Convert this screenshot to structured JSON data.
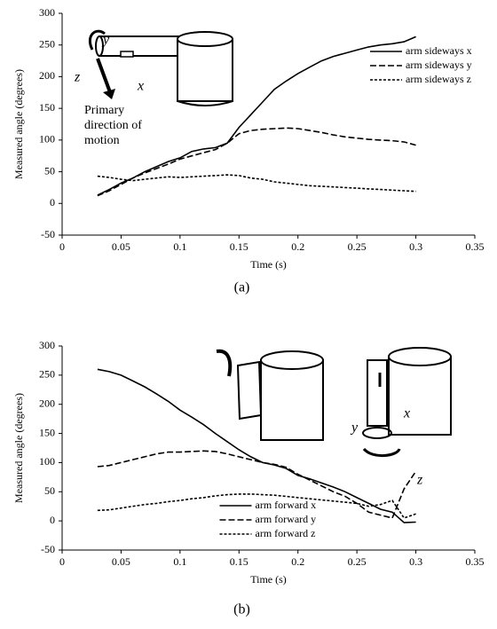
{
  "chart_data": [
    {
      "type": "line",
      "caption": "(a)",
      "xlabel": "Time (s)",
      "ylabel": "Measured angle (degrees)",
      "x": [
        0.03,
        0.04,
        0.05,
        0.06,
        0.07,
        0.08,
        0.09,
        0.1,
        0.11,
        0.12,
        0.13,
        0.14,
        0.15,
        0.16,
        0.17,
        0.18,
        0.19,
        0.2,
        0.21,
        0.22,
        0.23,
        0.24,
        0.25,
        0.26,
        0.27,
        0.28,
        0.29,
        0.3
      ],
      "series": [
        {
          "name": "arm sideways x",
          "color": "#000000",
          "dash": "solid",
          "values": [
            13,
            22,
            32,
            40,
            50,
            58,
            66,
            72,
            82,
            86,
            88,
            95,
            120,
            140,
            160,
            180,
            193,
            205,
            215,
            225,
            232,
            237,
            242,
            247,
            250,
            252,
            255,
            263
          ]
        },
        {
          "name": "arm sideways y",
          "color": "#000000",
          "dash": "dashed",
          "values": [
            12,
            20,
            30,
            40,
            48,
            55,
            62,
            70,
            75,
            80,
            85,
            95,
            110,
            115,
            117,
            118,
            119,
            118,
            115,
            112,
            108,
            105,
            103,
            101,
            100,
            99,
            97,
            92
          ]
        },
        {
          "name": "arm sideways z",
          "color": "#000000",
          "dash": "dotted",
          "values": [
            43,
            41,
            38,
            36,
            38,
            40,
            42,
            41,
            42,
            43,
            44,
            45,
            44,
            40,
            38,
            34,
            32,
            30,
            28,
            27,
            26,
            25,
            24,
            23,
            22,
            21,
            20,
            19
          ]
        }
      ],
      "xlim": [
        0,
        0.35
      ],
      "xticks": [
        0,
        0.05,
        0.1,
        0.15,
        0.2,
        0.25,
        0.3,
        0.35
      ],
      "ylim": [
        -50,
        300
      ],
      "yticks": [
        -50,
        0,
        50,
        100,
        150,
        200,
        250,
        300
      ],
      "grid": false,
      "legend": "upper right",
      "annotations": [
        "y",
        "z",
        "x",
        "Primary",
        "direction of",
        "motion"
      ]
    },
    {
      "type": "line",
      "caption": "(b)",
      "xlabel": "Time (s)",
      "ylabel": "Measured angle (degrees)",
      "x": [
        0.03,
        0.04,
        0.05,
        0.06,
        0.07,
        0.08,
        0.09,
        0.1,
        0.11,
        0.12,
        0.13,
        0.14,
        0.15,
        0.16,
        0.17,
        0.18,
        0.19,
        0.2,
        0.21,
        0.22,
        0.23,
        0.24,
        0.25,
        0.26,
        0.27,
        0.28,
        0.29,
        0.3
      ],
      "series": [
        {
          "name": "arm forward x",
          "color": "#000000",
          "dash": "solid",
          "values": [
            260,
            256,
            250,
            240,
            230,
            218,
            205,
            190,
            178,
            165,
            150,
            136,
            122,
            110,
            100,
            96,
            90,
            78,
            72,
            65,
            58,
            50,
            40,
            30,
            20,
            15,
            -3,
            -2
          ]
        },
        {
          "name": "arm forward y",
          "color": "#000000",
          "dash": "dashed",
          "values": [
            93,
            95,
            100,
            105,
            110,
            115,
            118,
            118,
            119,
            120,
            119,
            115,
            110,
            105,
            100,
            97,
            92,
            80,
            70,
            60,
            50,
            42,
            30,
            15,
            10,
            5,
            55,
            85
          ]
        },
        {
          "name": "arm forward z",
          "color": "#000000",
          "dash": "dotted",
          "values": [
            18,
            19,
            22,
            25,
            28,
            30,
            33,
            35,
            38,
            40,
            43,
            45,
            46,
            46,
            45,
            44,
            42,
            40,
            38,
            36,
            34,
            32,
            30,
            25,
            28,
            35,
            5,
            12
          ]
        }
      ],
      "xlim": [
        0,
        0.35
      ],
      "xticks": [
        0,
        0.05,
        0.1,
        0.15,
        0.2,
        0.25,
        0.3,
        0.35
      ],
      "ylim": [
        -50,
        300
      ],
      "yticks": [
        -50,
        0,
        50,
        100,
        150,
        200,
        250,
        300
      ],
      "grid": false,
      "legend": "lower center",
      "annotations": [
        "x",
        "y",
        "z"
      ]
    }
  ]
}
